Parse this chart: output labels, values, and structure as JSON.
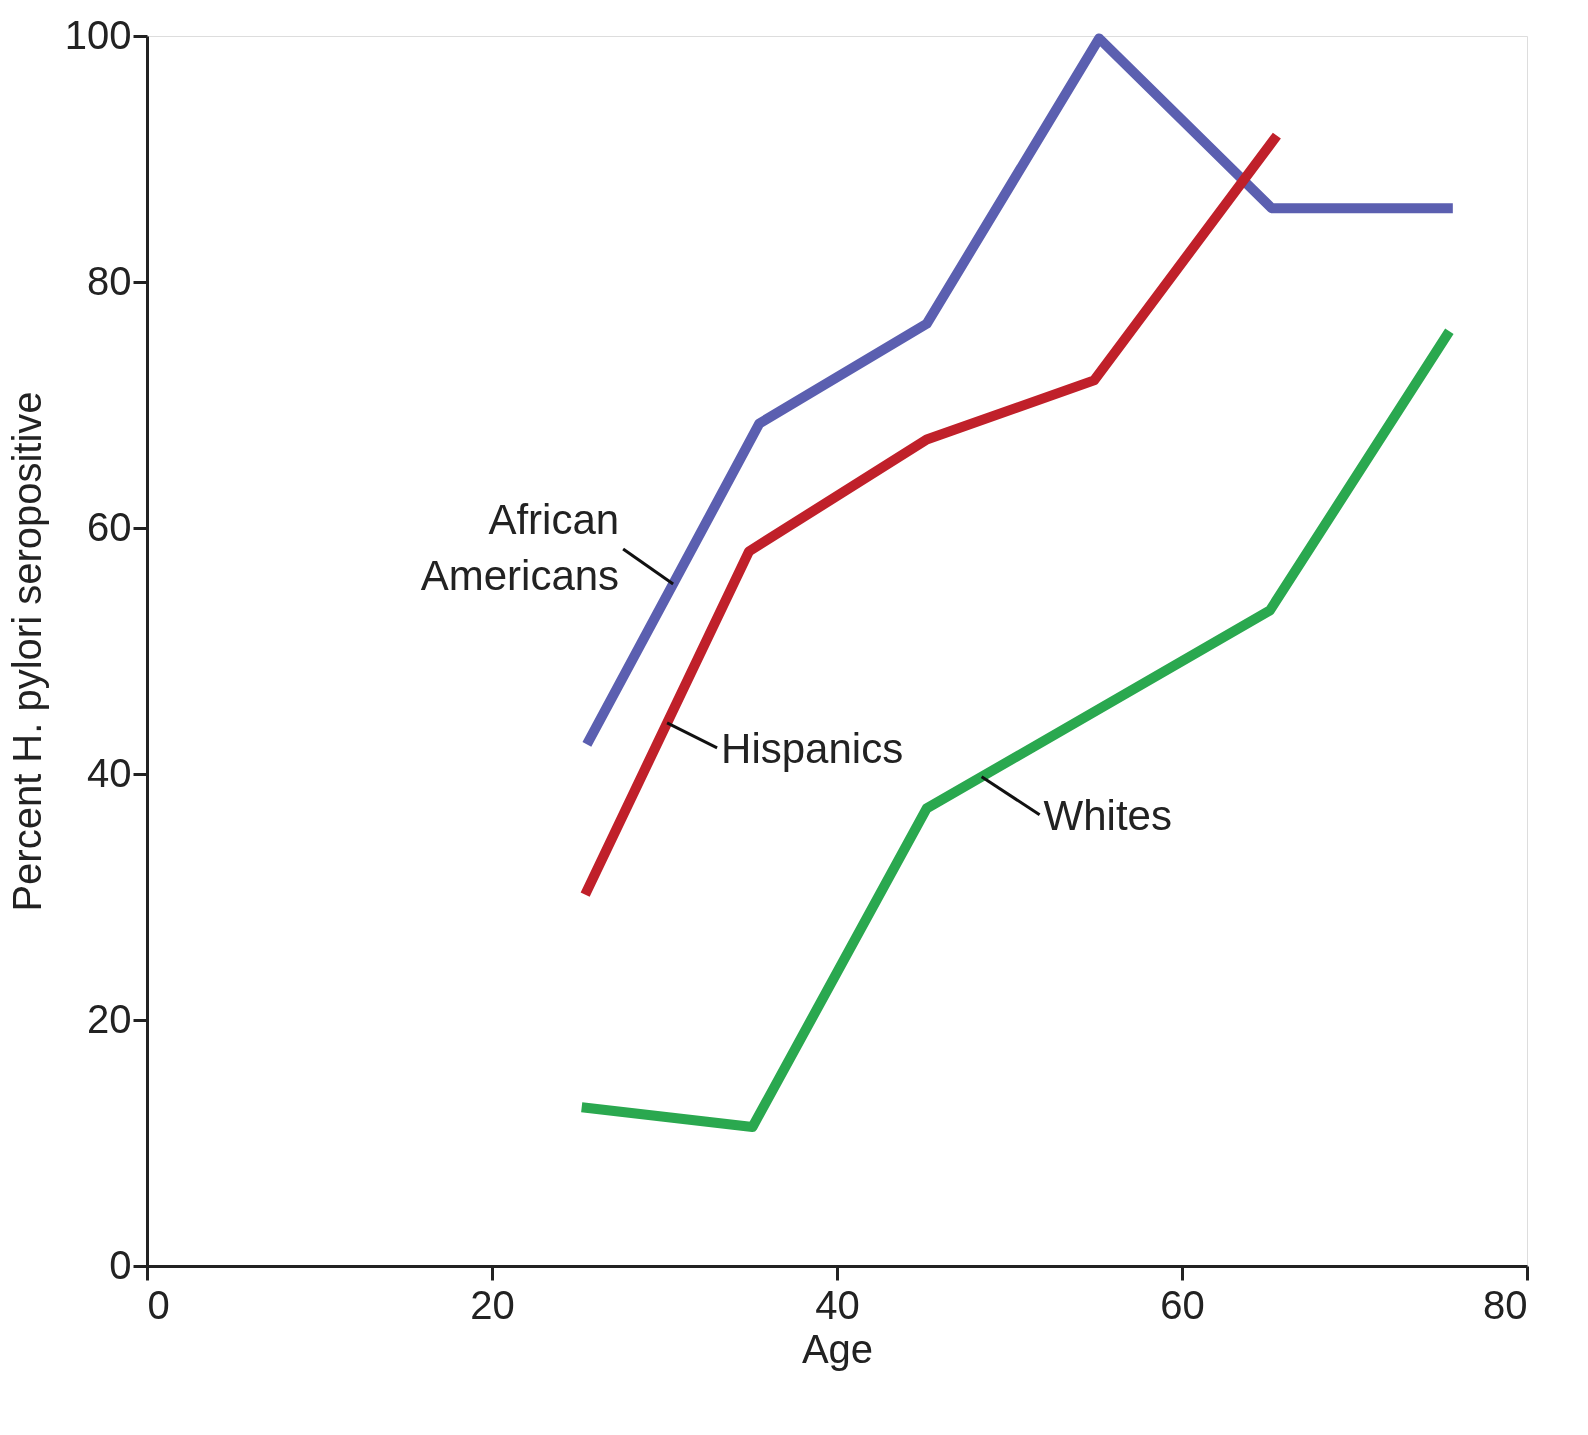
{
  "chart_data": {
    "type": "line",
    "xlabel": "Age",
    "ylabel": "Percent H. pylori seropositive",
    "xlim": [
      0,
      80
    ],
    "xticks": [
      0,
      20,
      40,
      60,
      80
    ],
    "ylim": [
      0,
      100
    ],
    "yticks": [
      0,
      20,
      40,
      60,
      80,
      100
    ],
    "grid": false,
    "marker": "none",
    "line_style": "solid",
    "series": [
      {
        "name": "African Americans",
        "color": "#5b5fb0",
        "x": [
          25.5,
          35.5,
          45.2,
          55.2,
          65.2,
          75.7
        ],
        "values": [
          42.4,
          68.5,
          76.6,
          99.8,
          86,
          86
        ]
      },
      {
        "name": "Hispanics",
        "color": "#c0202a",
        "x": [
          25.4,
          34.9,
          45.2,
          54.9,
          65.5
        ],
        "values": [
          30.2,
          58.1,
          67.2,
          72,
          91.9
        ]
      },
      {
        "name": "Whites",
        "color": "#2aa84f",
        "x": [
          25.2,
          35.1,
          45.2,
          65.1,
          75.5
        ],
        "values": [
          12.9,
          11.3,
          37.2,
          53.3,
          76
        ]
      }
    ]
  }
}
